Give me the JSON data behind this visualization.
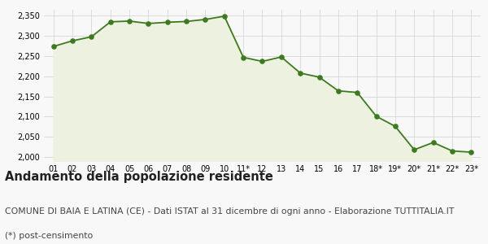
{
  "x_labels": [
    "01",
    "02",
    "03",
    "04",
    "05",
    "06",
    "07",
    "08",
    "09",
    "10",
    "11*",
    "12",
    "13",
    "14",
    "15",
    "16",
    "17",
    "18*",
    "19*",
    "20*",
    "21*",
    "22*",
    "23*"
  ],
  "y_values": [
    2274,
    2288,
    2298,
    2335,
    2337,
    2331,
    2334,
    2336,
    2341,
    2349,
    2247,
    2237,
    2248,
    2208,
    2198,
    2164,
    2160,
    2101,
    2076,
    2018,
    2036,
    2015,
    2012
  ],
  "line_color": "#3d7a1e",
  "fill_color": "#edf2e0",
  "marker_color": "#3d7a1e",
  "bg_color": "#f8f8f8",
  "grid_color": "#d0d0d0",
  "ylim": [
    1990,
    2365
  ],
  "yticks": [
    2000,
    2050,
    2100,
    2150,
    2200,
    2250,
    2300,
    2350
  ],
  "title_main": "Andamento della popolazione residente",
  "title_sub1": "COMUNE DI BAIA E LATINA (CE) - Dati ISTAT al 31 dicembre di ogni anno - Elaborazione TUTTITALIA.IT",
  "title_sub2": "(*) post-censimento",
  "title_fontsize": 10.5,
  "sub_fontsize": 7.8
}
